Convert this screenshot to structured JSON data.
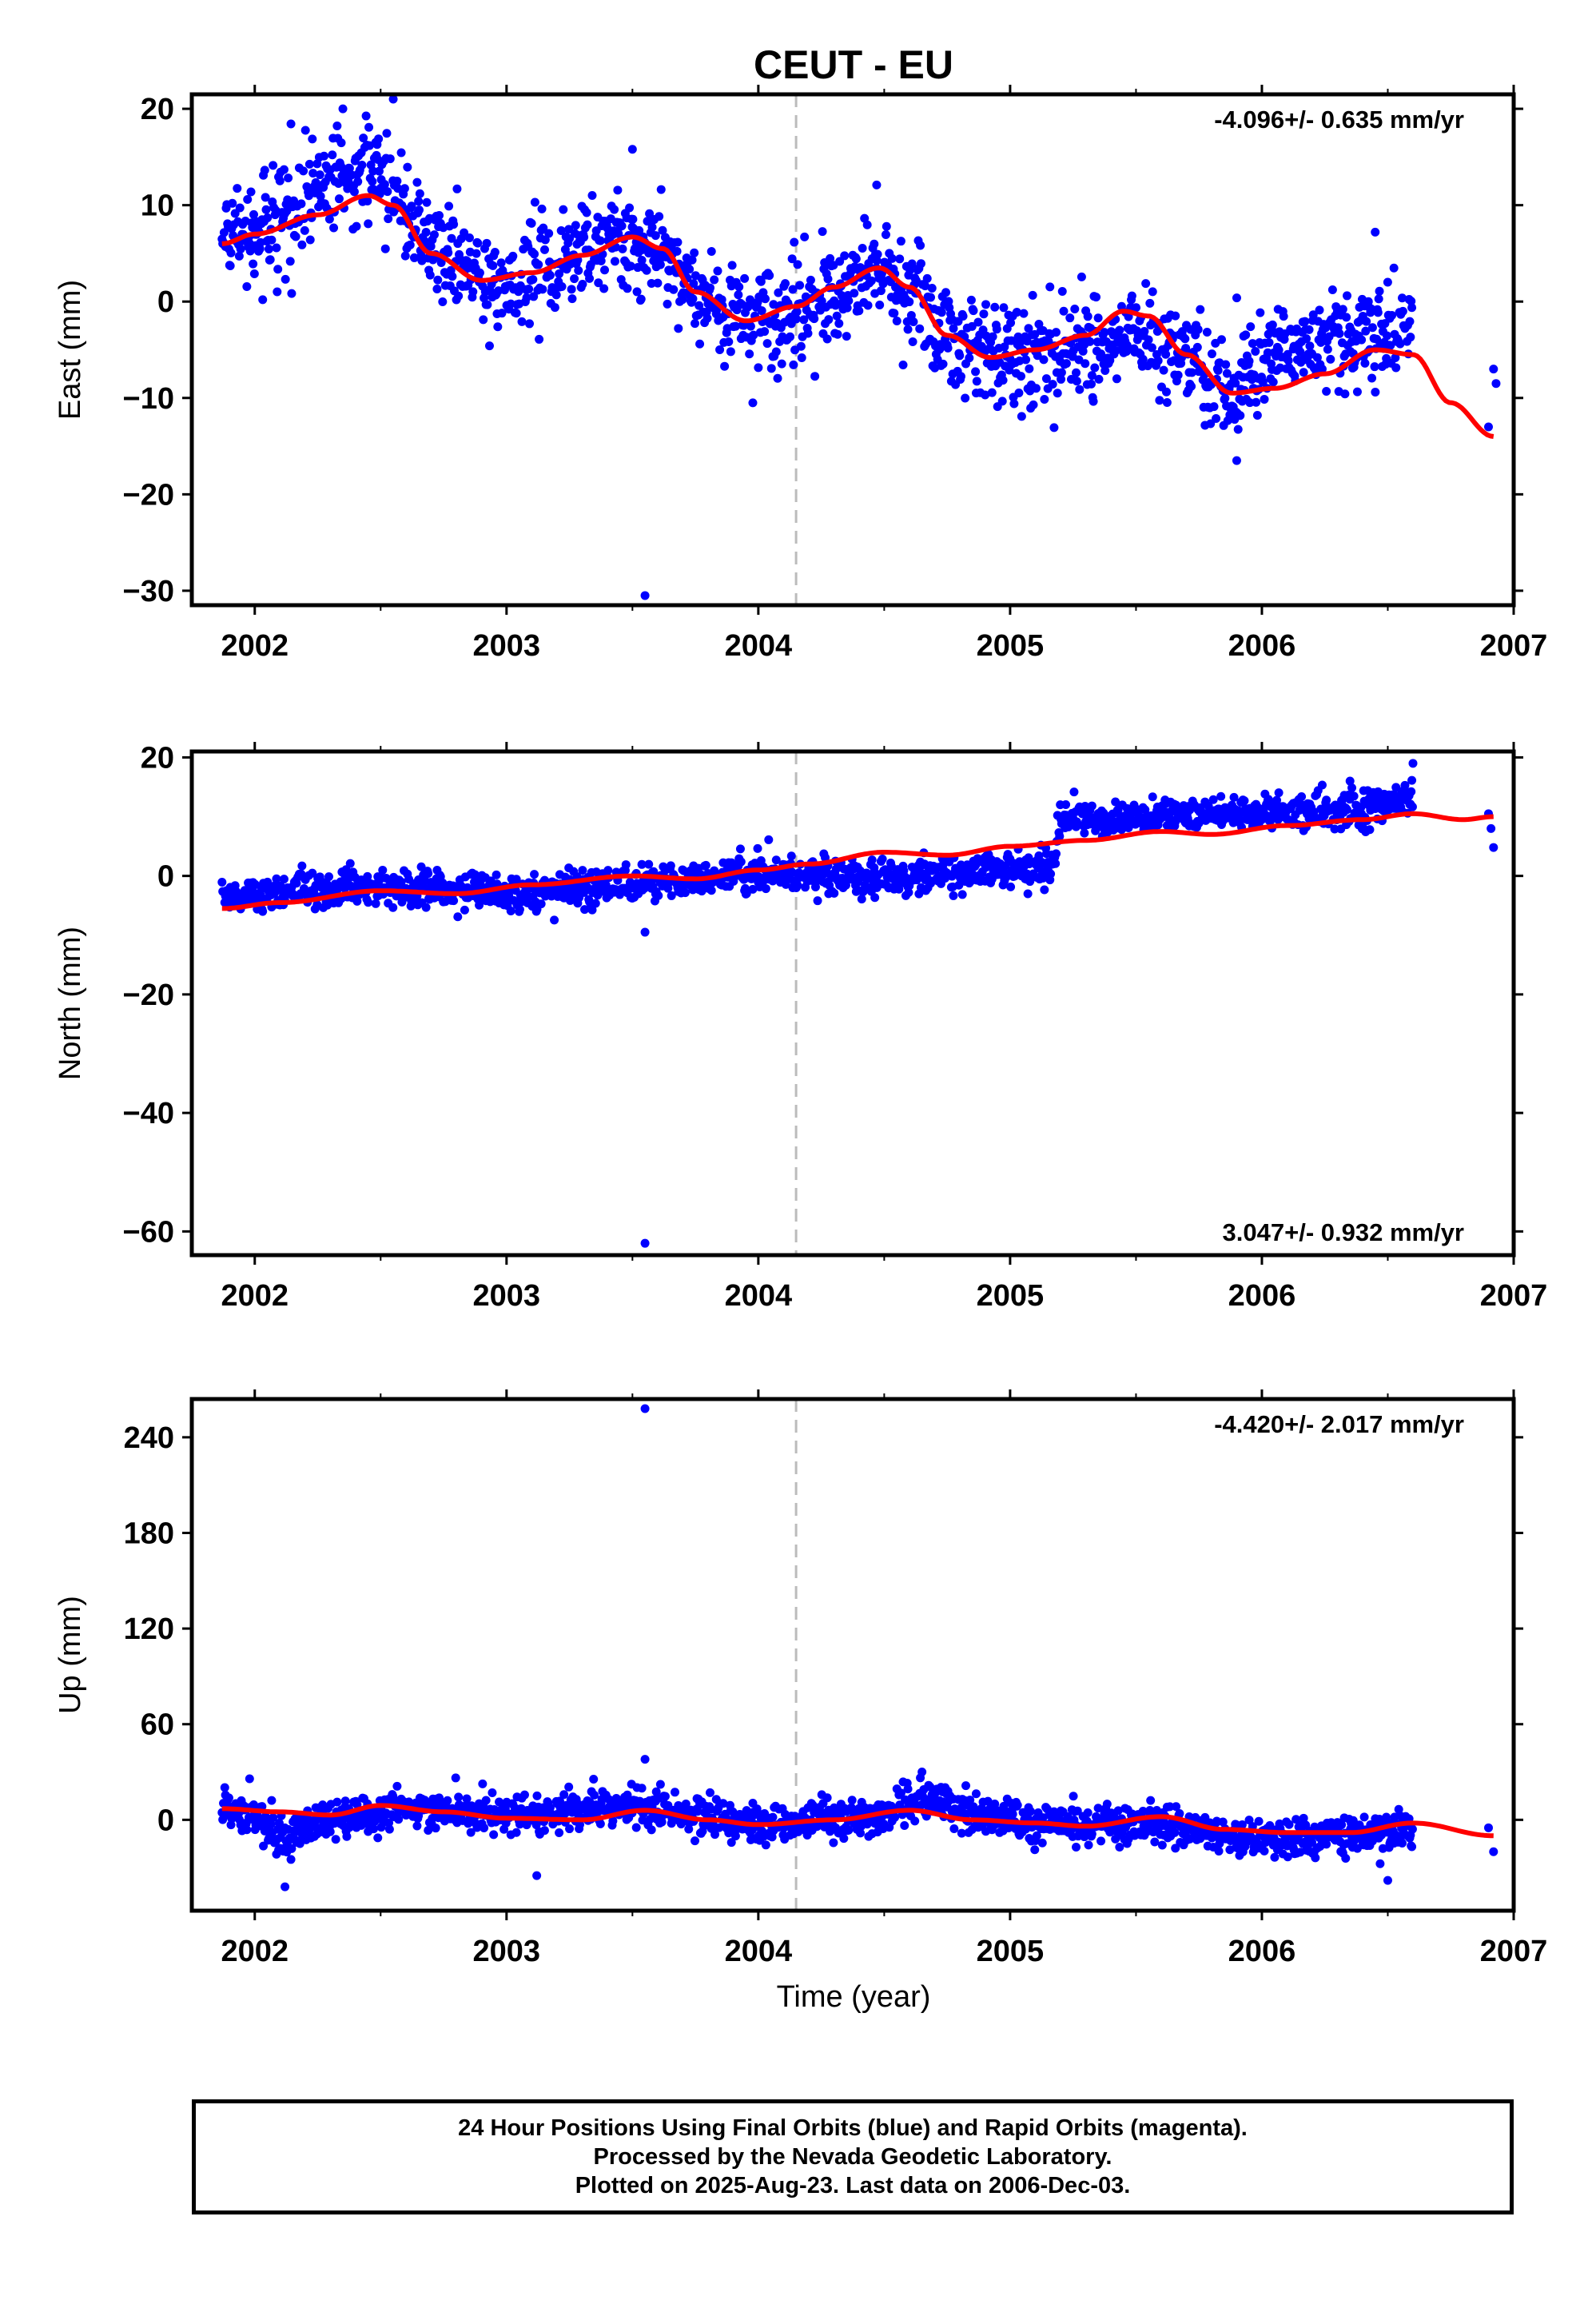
{
  "title": "CEUT - EU",
  "xlabel": "Time (year)",
  "colors": {
    "data_points": "#0000ff",
    "trend_line": "#ff0000",
    "reference_line": "#bbbbbb",
    "frame": "#000000"
  },
  "footer": {
    "line1": "24 Hour Positions Using Final Orbits (blue) and Rapid Orbits (magenta).",
    "line2": "Processed by the Nevada Geodetic Laboratory.",
    "line3": "Plotted on 2025-Aug-23. Last data on 2006-Dec-03."
  },
  "chart_data": [
    {
      "type": "scatter",
      "component": "east",
      "ylabel": "East (mm)",
      "rate_text": "-4.096+/- 0.635 mm/yr",
      "rate_position": "top-right",
      "xlim": [
        2001.75,
        2007.0
      ],
      "ylim": [
        -31.5,
        21.5
      ],
      "xticks": [
        2002,
        2003,
        2004,
        2005,
        2006,
        2007
      ],
      "yticks": [
        -30,
        -20,
        -10,
        0,
        10,
        20
      ],
      "reference_line_x": 2004.15,
      "series": [
        {
          "role": "trend",
          "x": [
            2001.87,
            2002.0,
            2002.25,
            2002.45,
            2002.55,
            2002.7,
            2002.9,
            2003.1,
            2003.3,
            2003.5,
            2003.62,
            2003.75,
            2003.95,
            2004.15,
            2004.3,
            2004.48,
            2004.6,
            2004.75,
            2004.92,
            2005.1,
            2005.3,
            2005.45,
            2005.55,
            2005.7,
            2005.88,
            2006.05,
            2006.25,
            2006.45,
            2006.6,
            2006.75,
            2006.92
          ],
          "y": [
            6.0,
            7.0,
            9.0,
            11.0,
            10.0,
            5.0,
            2.2,
            3.0,
            4.8,
            6.7,
            5.5,
            1.0,
            -2.0,
            -0.5,
            1.5,
            3.5,
            1.5,
            -3.5,
            -5.8,
            -5.0,
            -3.5,
            -1.0,
            -1.5,
            -5.5,
            -9.5,
            -9.0,
            -7.5,
            -5.0,
            -5.5,
            -10.5,
            -14.0
          ]
        },
        {
          "role": "positions",
          "anchors_x": [
            2001.87,
            2002.0,
            2002.25,
            2002.45,
            2002.55,
            2002.7,
            2002.9,
            2003.1,
            2003.3,
            2003.5,
            2003.62,
            2003.75,
            2003.95,
            2004.15,
            2004.3,
            2004.48,
            2004.6,
            2004.75,
            2004.92,
            2005.1,
            2005.3,
            2005.45,
            2005.55,
            2005.7,
            2005.88,
            2006.05,
            2006.25,
            2006.45,
            2006.6
          ],
          "anchors_y": [
            6.5,
            7.0,
            12.0,
            13.5,
            11.5,
            5.5,
            2.5,
            3.0,
            5.0,
            6.5,
            4.5,
            0.5,
            -2.0,
            -1.0,
            1.0,
            3.5,
            1.0,
            -3.5,
            -5.5,
            -5.5,
            -5.0,
            -3.5,
            -3.5,
            -6.0,
            -9.5,
            -5.0,
            -4.0,
            -3.5,
            -2.5
          ],
          "scatter_sd": 2.6,
          "extra_points": [
            [
              2003.55,
              -30.5
            ],
            [
              2002.55,
              21.0
            ],
            [
              2002.35,
              20.0
            ],
            [
              2003.5,
              15.8
            ],
            [
              2004.47,
              12.1
            ],
            [
              2006.45,
              7.2
            ],
            [
              2006.92,
              -7.0
            ],
            [
              2006.93,
              -8.5
            ],
            [
              2006.9,
              -13.0
            ],
            [
              2005.9,
              -16.5
            ]
          ]
        }
      ]
    },
    {
      "type": "scatter",
      "component": "north",
      "ylabel": "North (mm)",
      "rate_text": "3.047+/- 0.932 mm/yr",
      "rate_position": "bottom-right",
      "xlim": [
        2001.75,
        2007.0
      ],
      "ylim": [
        -64.0,
        21.0
      ],
      "xticks": [
        2002,
        2003,
        2004,
        2005,
        2006,
        2007
      ],
      "yticks": [
        -60,
        -40,
        -20,
        0,
        20
      ],
      "reference_line_x": 2004.15,
      "series": [
        {
          "role": "trend",
          "x": [
            2001.87,
            2002.1,
            2002.5,
            2002.8,
            2003.1,
            2003.5,
            2003.75,
            2004.0,
            2004.2,
            2004.5,
            2004.75,
            2005.0,
            2005.3,
            2005.6,
            2005.8,
            2006.1,
            2006.4,
            2006.6,
            2006.8,
            2006.92
          ],
          "y": [
            -5.5,
            -4.5,
            -2.5,
            -3.0,
            -1.5,
            0.0,
            -0.5,
            1.0,
            2.0,
            4.0,
            3.5,
            5.0,
            6.0,
            7.5,
            7.0,
            8.5,
            9.5,
            10.5,
            9.5,
            10.0
          ]
        },
        {
          "role": "positions",
          "anchors_x": [
            2001.87,
            2002.2,
            2002.6,
            2003.0,
            2003.5,
            2004.0,
            2004.5,
            2005.0,
            2005.17,
            2005.2,
            2005.6,
            2006.0,
            2006.4,
            2006.6
          ],
          "anchors_y": [
            -3.5,
            -2.0,
            -2.0,
            -3.0,
            -1.5,
            0.5,
            -0.5,
            1.0,
            1.5,
            9.5,
            10.0,
            10.5,
            11.0,
            13.0
          ],
          "scatter_sd": 1.5,
          "extra_points": [
            [
              2003.55,
              -62.0
            ],
            [
              2003.55,
              -9.5
            ],
            [
              2006.35,
              16.0
            ],
            [
              2006.6,
              19.0
            ],
            [
              2006.9,
              10.5
            ],
            [
              2006.91,
              8.0
            ],
            [
              2006.92,
              4.8
            ]
          ]
        }
      ]
    },
    {
      "type": "scatter",
      "component": "up",
      "ylabel": "Up (mm)",
      "rate_text": "-4.420+/- 2.017 mm/yr",
      "rate_position": "top-right",
      "xlim": [
        2001.75,
        2007.0
      ],
      "ylim": [
        -57.0,
        264.0
      ],
      "xticks": [
        2002,
        2003,
        2004,
        2005,
        2006,
        2007
      ],
      "yticks": [
        0,
        60,
        120,
        180,
        240
      ],
      "reference_line_x": 2004.15,
      "series": [
        {
          "role": "trend",
          "x": [
            2001.87,
            2002.1,
            2002.3,
            2002.5,
            2002.75,
            2003.0,
            2003.3,
            2003.55,
            2003.8,
            2004.0,
            2004.3,
            2004.6,
            2004.85,
            2005.1,
            2005.3,
            2005.6,
            2005.85,
            2006.1,
            2006.35,
            2006.6,
            2006.92
          ],
          "y": [
            7.0,
            5.0,
            3.0,
            9.0,
            5.0,
            1.0,
            0.0,
            6.0,
            0.0,
            -3.0,
            0.0,
            6.0,
            0.0,
            -2.0,
            -4.0,
            2.0,
            -6.0,
            -8.0,
            -8.0,
            -2.0,
            -10.0
          ]
        },
        {
          "role": "positions",
          "anchors_x": [
            2001.87,
            2002.0,
            2002.12,
            2002.3,
            2002.6,
            2003.0,
            2003.5,
            2004.0,
            2004.5,
            2004.65,
            2005.0,
            2005.5,
            2005.85,
            2006.2,
            2006.6
          ],
          "anchors_y": [
            8.0,
            4.0,
            -12.0,
            0.0,
            8.0,
            3.0,
            8.0,
            -3.0,
            3.0,
            12.0,
            -2.0,
            -2.0,
            -10.0,
            -12.0,
            -5.0
          ],
          "scatter_sd": 6.0,
          "extra_points": [
            [
              2003.55,
              258.0
            ],
            [
              2003.55,
              38.0
            ],
            [
              2002.12,
              -42.0
            ],
            [
              2003.12,
              -35.0
            ],
            [
              2006.5,
              -38.0
            ],
            [
              2006.92,
              -20.0
            ],
            [
              2006.9,
              -5.0
            ],
            [
              2004.65,
              30.0
            ]
          ]
        }
      ]
    }
  ]
}
